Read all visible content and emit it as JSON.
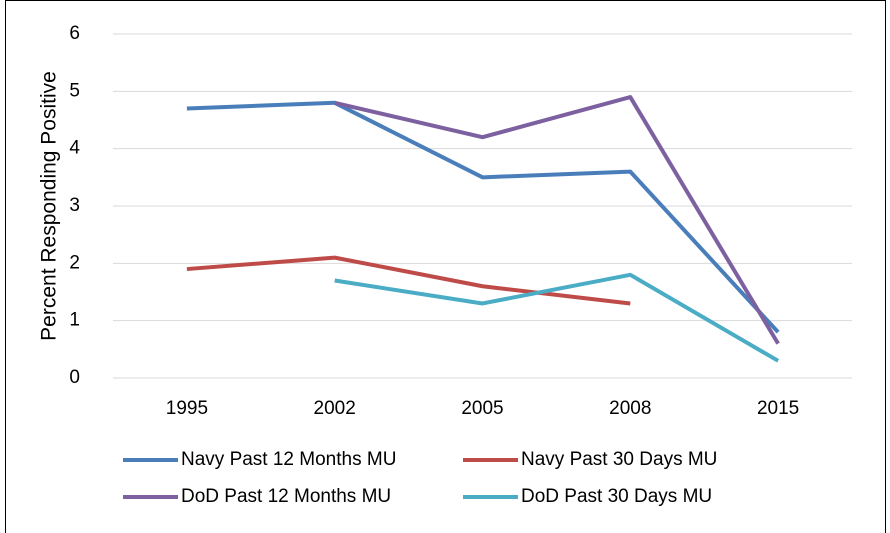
{
  "chart_data": {
    "type": "line",
    "ylabel": "Percent Responding Positive",
    "categories": [
      "1995",
      "2002",
      "2005",
      "2008",
      "2015"
    ],
    "series": [
      {
        "name": "Navy Past 12 Months MU",
        "color": "#4a7ebb",
        "values": [
          4.7,
          4.8,
          3.5,
          3.6,
          0.8
        ]
      },
      {
        "name": "Navy Past 30 Days MU",
        "color": "#be4b48",
        "values": [
          1.9,
          2.1,
          1.6,
          1.3,
          null
        ]
      },
      {
        "name": "DoD Past 12 Months MU",
        "color": "#7d60a0",
        "values": [
          null,
          4.8,
          4.2,
          4.9,
          0.6
        ]
      },
      {
        "name": "DoD Past 30 Days MU",
        "color": "#4aacc5",
        "values": [
          null,
          1.7,
          1.3,
          1.8,
          0.3
        ]
      }
    ],
    "ylim": [
      0,
      6
    ],
    "yticks": [
      0,
      1,
      2,
      3,
      4,
      5,
      6
    ],
    "grid": true,
    "legend": "bottom"
  }
}
